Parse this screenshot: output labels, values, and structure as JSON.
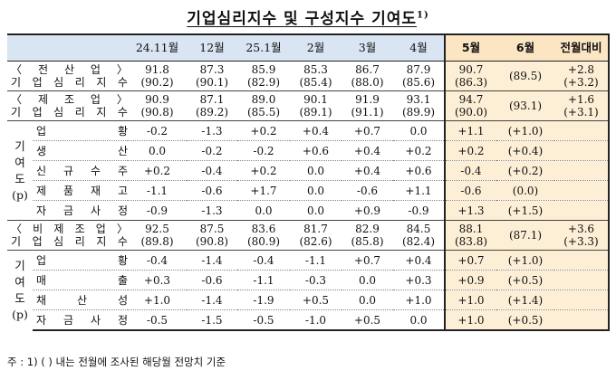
{
  "title": "기업심리지수 및 구성지수 기여도",
  "title_sup": "1)",
  "headers": [
    "24.11월",
    "12월",
    "25.1월",
    "2월",
    "3월",
    "4월",
    "5월",
    "6월",
    "전월대비"
  ],
  "sections": [
    {
      "label": [
        "〈 전 산 업 〉",
        "기업심리지수"
      ],
      "values": [
        "91.8",
        "87.3",
        "85.9",
        "85.3",
        "86.7",
        "87.9",
        "90.7"
      ],
      "prior": [
        "(90.2)",
        "(90.1)",
        "(82.9)",
        "(85.4)",
        "(88.0)",
        "(85.6)",
        "(86.3)"
      ],
      "jun": "(89.5)",
      "change": [
        "+2.8",
        "(+3.2)"
      ]
    },
    {
      "label": [
        "〈 제 조 업 〉",
        "기업심리지수"
      ],
      "values": [
        "90.9",
        "87.1",
        "89.0",
        "90.1",
        "91.9",
        "93.1",
        "94.7"
      ],
      "prior": [
        "(90.8)",
        "(89.2)",
        "(85.5)",
        "(89.1)",
        "(91.1)",
        "(89.9)",
        "(90.0)"
      ],
      "jun": "(93.1)",
      "change": [
        "+1.6",
        "(+3.1)"
      ]
    },
    {
      "label": [
        "〈 비 제 조 업 〉",
        "기업심리지수"
      ],
      "values": [
        "92.5",
        "87.5",
        "83.6",
        "81.7",
        "82.9",
        "84.5",
        "88.1"
      ],
      "prior": [
        "(89.8)",
        "(90.8)",
        "(80.9)",
        "(82.6)",
        "(85.8)",
        "(82.4)",
        "(83.8)"
      ],
      "jun": "(87.1)",
      "change": [
        "+3.6",
        "(+3.3)"
      ]
    }
  ],
  "side_label": [
    "기",
    "여",
    "도",
    "(p)"
  ],
  "mfg_rows": [
    {
      "label": "업황",
      "values": [
        "-0.2",
        "-1.3",
        "+0.2",
        "+0.4",
        "+0.7",
        "0.0",
        "+1.1"
      ],
      "jun": "(+1.0)"
    },
    {
      "label": "생산",
      "values": [
        "0.0",
        "-0.2",
        "-0.2",
        "+0.6",
        "+0.4",
        "+0.2",
        "+0.2"
      ],
      "jun": "(+0.4)"
    },
    {
      "label": "신규수주",
      "values": [
        "+0.2",
        "-0.4",
        "+0.2",
        "0.0",
        "+0.4",
        "+0.6",
        "-0.4"
      ],
      "jun": "(+0.2)"
    },
    {
      "label": "제품재고",
      "values": [
        "-1.1",
        "-0.6",
        "+1.7",
        "0.0",
        "-0.6",
        "+1.1",
        "-0.6"
      ],
      "jun": "(0.0)"
    },
    {
      "label": "자금사정",
      "values": [
        "-0.9",
        "-1.3",
        "0.0",
        "0.0",
        "+0.9",
        "-0.9",
        "+1.3"
      ],
      "jun": "(+1.5)"
    }
  ],
  "nonmfg_rows": [
    {
      "label": "업황",
      "values": [
        "-0.4",
        "-1.4",
        "-0.4",
        "-1.1",
        "+0.7",
        "+0.4",
        "+0.7"
      ],
      "jun": "(+1.0)"
    },
    {
      "label": "매출",
      "values": [
        "+0.3",
        "-0.6",
        "-1.1",
        "-0.3",
        "0.0",
        "+0.3",
        "+0.9"
      ],
      "jun": "(+0.5)"
    },
    {
      "label": "채산성",
      "values": [
        "+1.0",
        "-1.4",
        "-1.9",
        "+0.5",
        "0.0",
        "+1.0",
        "+1.0"
      ],
      "jun": "(+1.4)"
    },
    {
      "label": "자금사정",
      "values": [
        "-0.5",
        "-1.5",
        "-0.5",
        "-1.0",
        "+0.5",
        "0.0",
        "+1.0"
      ],
      "jun": "(+0.5)"
    }
  ],
  "footnote": "주 : 1) (  ) 내는 전월에 조사된 해당월 전망치 기준"
}
